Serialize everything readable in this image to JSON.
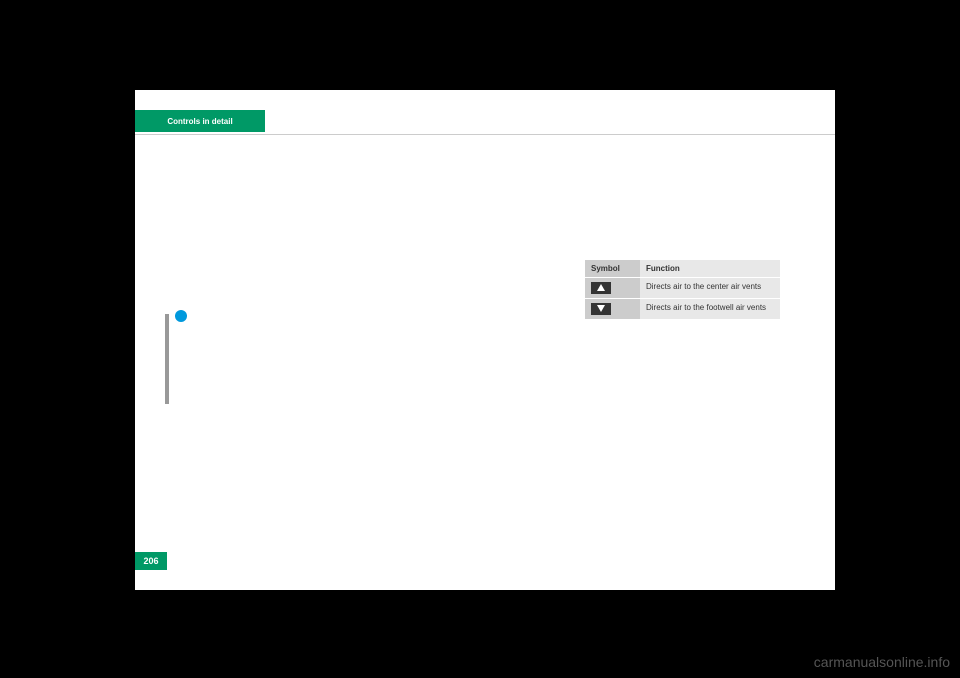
{
  "header": {
    "tab_label": "Controls in detail"
  },
  "table": {
    "header": {
      "col1": "Symbol",
      "col2": "Function"
    },
    "rows": [
      {
        "desc": "Directs air to the center air vents"
      },
      {
        "desc": "Directs air to the footwell air vents"
      }
    ]
  },
  "page_number": "206",
  "watermark": "carmanualsonline.info",
  "colors": {
    "background": "#000000",
    "page_bg": "#ffffff",
    "accent": "#009966",
    "info_icon": "#0099dd",
    "table_header_bg": "#cccccc",
    "table_cell_bg": "#e8e8e8",
    "watermark_color": "#555555"
  }
}
